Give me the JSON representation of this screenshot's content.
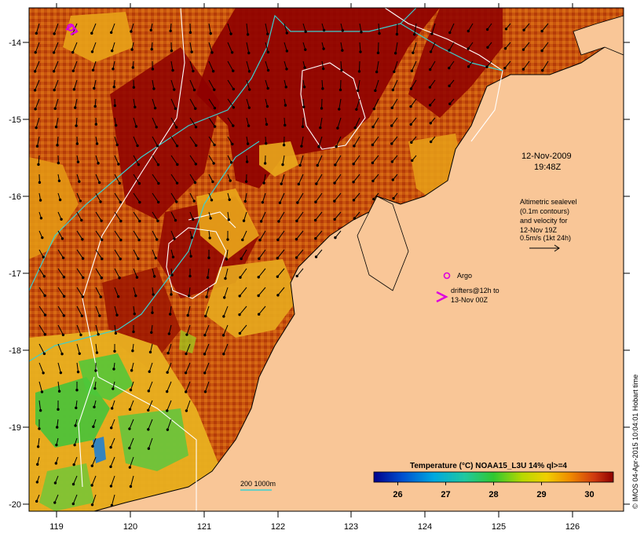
{
  "map": {
    "lon_ticks": [
      "119",
      "120",
      "121",
      "122",
      "123",
      "124",
      "125",
      "126"
    ],
    "lat_ticks": [
      "-14",
      "-15",
      "-16",
      "-17",
      "-18",
      "-19",
      "-20"
    ],
    "date_label": "12-Nov-2009",
    "time_label": "19:48Z",
    "altimetry_note": [
      "Altimetric sealevel",
      "(0.1m contours)",
      "and velocity for",
      "12-Nov 19Z",
      "0.5m/s (1kt 24h)"
    ],
    "argo_label": "Argo",
    "drifters_label": [
      "drifters@12h to",
      "13-Nov 00Z"
    ],
    "isobath_label": "200  1000m",
    "colorbar": {
      "title": "Temperature (°C) NOAA15_L3U 14% ql>=4",
      "ticks": [
        "26",
        "27",
        "28",
        "29",
        "30"
      ],
      "range": [
        25.5,
        30.5
      ]
    },
    "credit": "© IMOS 04-Apr-2015 10:04:01 Hobart time",
    "colors": {
      "land": "#f9c697",
      "warm_max": "#8e0000",
      "warm": "#c54a0b",
      "mid": "#e8a218",
      "cool": "#3cc43c",
      "argo": "#dd00dd",
      "isobath": "#3ad0d0"
    },
    "icons": [
      "argo-circle-icon",
      "drifter-chevron-icon",
      "velocity-arrow-icon"
    ]
  }
}
